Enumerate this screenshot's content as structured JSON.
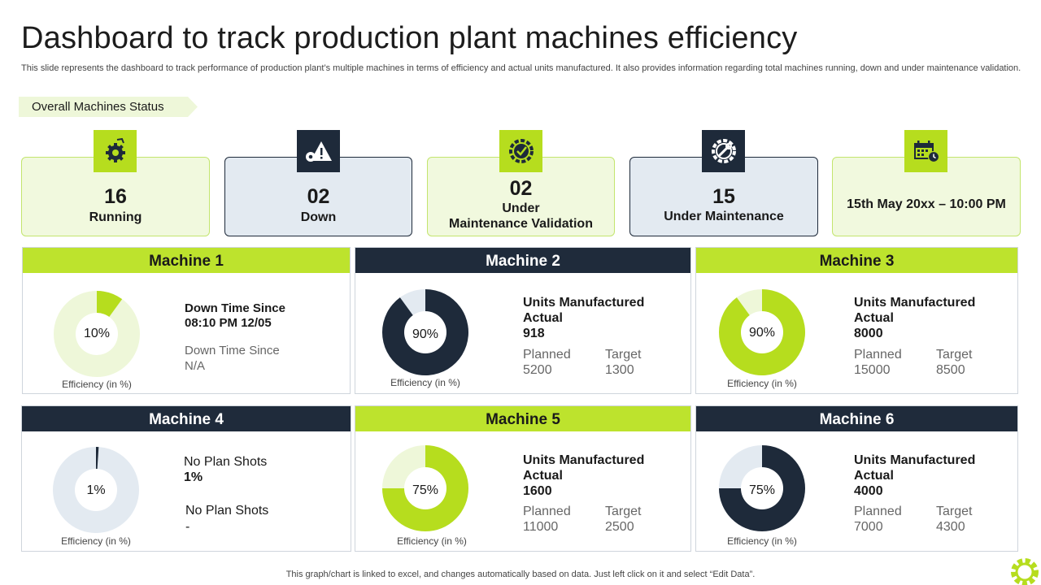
{
  "title": "Dashboard to track production plant machines efficiency",
  "subtitle": "This slide represents the dashboard to track performance of production plant’s multiple machines in terms of efficiency and actual units manufactured. It also provides information regarding total machines running, down and under maintenance validation.",
  "section_label": "Overall Machines Status",
  "status_cards": [
    {
      "value": "16",
      "label": "Running",
      "icon": "robot-gear-icon"
    },
    {
      "value": "02",
      "label": "Down",
      "icon": "warning-gear-icon"
    },
    {
      "value": "02",
      "label": "Under",
      "label2": "Maintenance Validation",
      "icon": "gear-check-icon"
    },
    {
      "value": "15",
      "label": "Under Maintenance",
      "icon": "gear-wrench-icon"
    },
    {
      "value": "",
      "label": "15th May 20xx – 10:00 PM",
      "icon": "calendar-clock-icon"
    }
  ],
  "efficiency_label": "Efficiency (in %)",
  "efficiency_label_alt": "Efficiency  (in  %)",
  "colors": {
    "lime": "#b6dd1e",
    "navy": "#1e2a3a",
    "lime_light": "#eef7d9",
    "navy_light": "#e3eaf1"
  },
  "machines": [
    {
      "name": "Machine 1",
      "efficiency_pct": 10,
      "efficiency_text": "10%",
      "line1": "Down Time Since",
      "line2": "08:10 PM 12/05",
      "line3": "Down Time Since",
      "line4": "N/A"
    },
    {
      "name": "Machine 2",
      "efficiency_pct": 90,
      "efficiency_text": "90%",
      "units_title": "Units Manufactured",
      "actual_label": "Actual",
      "actual": "918",
      "planned_label": "Planned",
      "planned": "5200",
      "target_label": "Target",
      "target": "1300"
    },
    {
      "name": "Machine 3",
      "efficiency_pct": 90,
      "efficiency_text": "90%",
      "units_title": "Units Manufactured",
      "actual_label": "Actual",
      "actual": "8000",
      "planned_label": "Planned",
      "planned": "15000",
      "target_label": "Target",
      "target": "8500"
    },
    {
      "name": "Machine 4",
      "efficiency_pct": 1,
      "efficiency_text": "1%",
      "line1": "No Plan Shots",
      "line2": "1%",
      "line3": "No Plan Shots",
      "line4": "-"
    },
    {
      "name": "Machine 5",
      "efficiency_pct": 75,
      "efficiency_text": "75%",
      "units_title": "Units Manufactured",
      "actual_label": "Actual",
      "actual": "1600",
      "planned_label": "Planned",
      "planned": "11000",
      "target_label": "Target",
      "target": "2500"
    },
    {
      "name": "Machine 6",
      "efficiency_pct": 75,
      "efficiency_text": "75%",
      "units_title": "Units Manufactured",
      "actual_label": "Actual",
      "actual": "4000",
      "planned_label": "Planned",
      "planned": "7000",
      "target_label": "Target",
      "target": "4300"
    }
  ],
  "footer": "This graph/chart is linked to excel,  and changes automatically based on data. Just left click on it and select “Edit Data”."
}
